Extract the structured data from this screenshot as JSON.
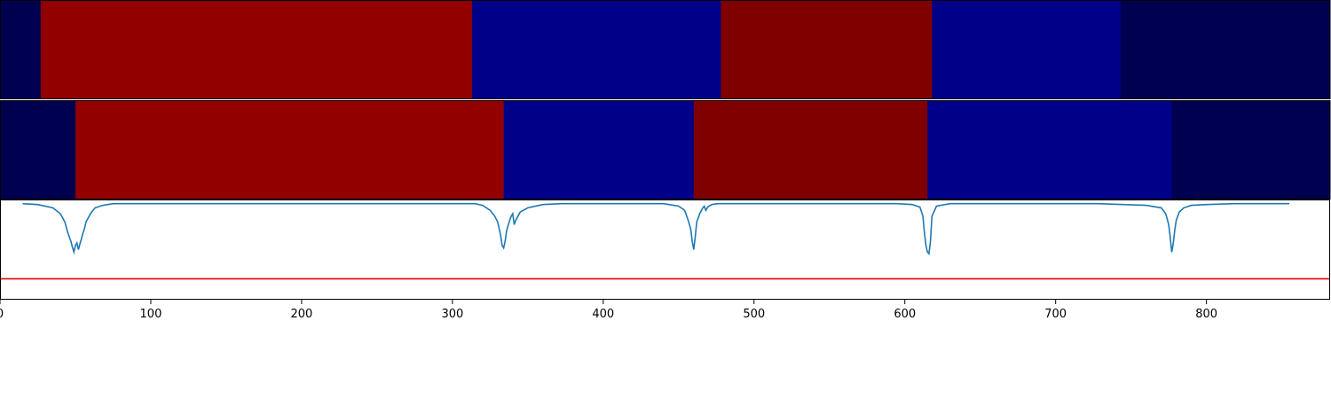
{
  "chart_data": {
    "type": "heatmap",
    "xlim": [
      0,
      882
    ],
    "x_ticks": [
      0,
      100,
      200,
      300,
      400,
      500,
      600,
      700,
      800
    ],
    "x_tick_labels": [
      "0",
      "100",
      "200",
      "300",
      "400",
      "500",
      "600",
      "700",
      "800"
    ],
    "segment_rows": [
      {
        "segments": [
          {
            "start": 0,
            "end": 27,
            "color": "#000050"
          },
          {
            "start": 27,
            "end": 313,
            "color": "#920000"
          },
          {
            "start": 313,
            "end": 478,
            "color": "#000088"
          },
          {
            "start": 478,
            "end": 618,
            "color": "#800000"
          },
          {
            "start": 618,
            "end": 743,
            "color": "#000088"
          },
          {
            "start": 743,
            "end": 882,
            "color": "#000050"
          }
        ]
      },
      {
        "segments": [
          {
            "start": 0,
            "end": 50,
            "color": "#000050"
          },
          {
            "start": 50,
            "end": 334,
            "color": "#920000"
          },
          {
            "start": 334,
            "end": 460,
            "color": "#000088"
          },
          {
            "start": 460,
            "end": 615,
            "color": "#800000"
          },
          {
            "start": 615,
            "end": 777,
            "color": "#000088"
          },
          {
            "start": 777,
            "end": 882,
            "color": "#000050"
          }
        ]
      }
    ],
    "line_panel": {
      "ylim": [
        -1.15,
        0.05
      ],
      "threshold": {
        "value": -0.9,
        "color": "#e00000"
      },
      "series": [
        {
          "color": "#1f77b4",
          "x": [
            15,
            25,
            35,
            40,
            43,
            45,
            47,
            48,
            49,
            50,
            51,
            52,
            53,
            54,
            55,
            56,
            57,
            60,
            63,
            68,
            75,
            90,
            315,
            320,
            325,
            328,
            330,
            332,
            333,
            334,
            335,
            336,
            338,
            339,
            340,
            341,
            342,
            345,
            350,
            360,
            372,
            440,
            450,
            454,
            456,
            458,
            459,
            460,
            461,
            462,
            464,
            466,
            467,
            468,
            469,
            470,
            472,
            476,
            485,
            595,
            605,
            610,
            612,
            613,
            614,
            615,
            616,
            617,
            618,
            621,
            630,
            650,
            670,
            728,
            745,
            760,
            770,
            773,
            775,
            776,
            777,
            778,
            779,
            780,
            782,
            785,
            790,
            800,
            818,
            835,
            855
          ],
          "y": [
            0,
            -0.01,
            -0.05,
            -0.12,
            -0.22,
            -0.35,
            -0.45,
            -0.52,
            -0.58,
            -0.5,
            -0.47,
            -0.55,
            -0.48,
            -0.42,
            -0.35,
            -0.3,
            -0.22,
            -0.12,
            -0.05,
            -0.02,
            0,
            0,
            0,
            -0.02,
            -0.08,
            -0.15,
            -0.22,
            -0.38,
            -0.5,
            -0.53,
            -0.45,
            -0.32,
            -0.2,
            -0.15,
            -0.12,
            -0.25,
            -0.2,
            -0.1,
            -0.05,
            -0.01,
            0,
            0,
            -0.03,
            -0.08,
            -0.18,
            -0.3,
            -0.45,
            -0.55,
            -0.4,
            -0.22,
            -0.12,
            -0.05,
            -0.03,
            -0.08,
            -0.05,
            -0.03,
            -0.01,
            0,
            0,
            0,
            -0.01,
            -0.04,
            -0.15,
            -0.35,
            -0.5,
            -0.58,
            -0.6,
            -0.45,
            -0.15,
            -0.03,
            0,
            0,
            0,
            0,
            -0.01,
            -0.02,
            -0.05,
            -0.12,
            -0.25,
            -0.4,
            -0.58,
            -0.48,
            -0.32,
            -0.2,
            -0.1,
            -0.05,
            -0.02,
            -0.01,
            0,
            0,
            0
          ]
        }
      ]
    }
  }
}
